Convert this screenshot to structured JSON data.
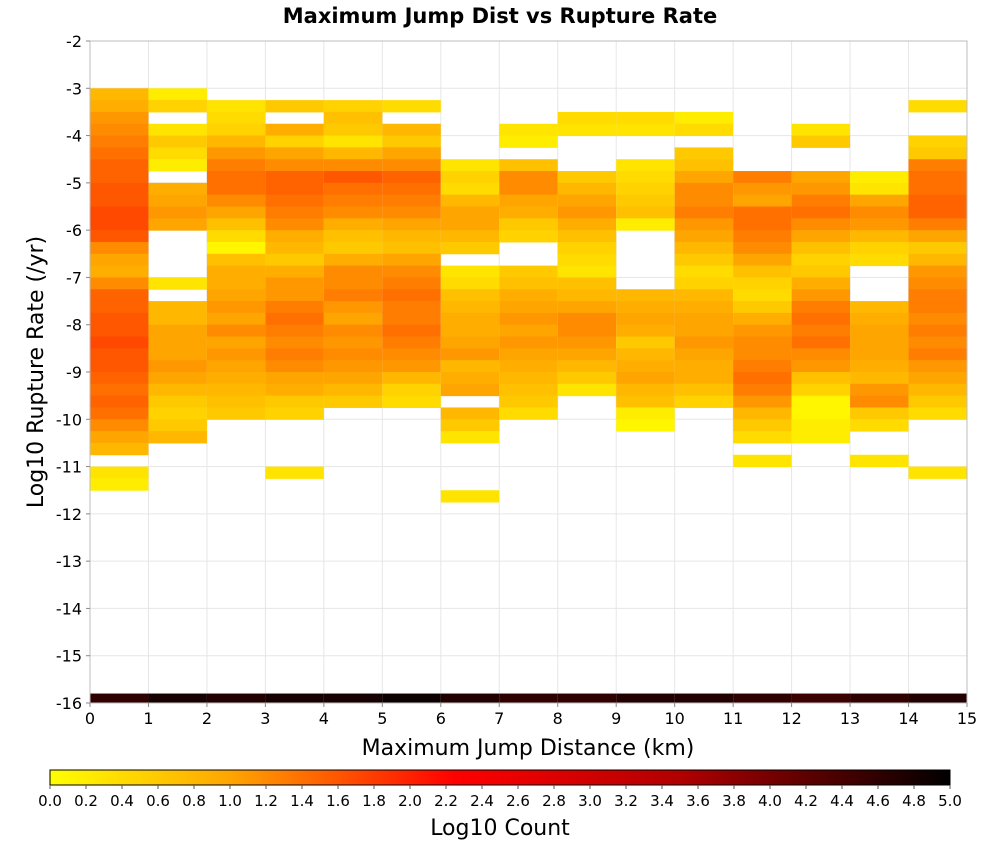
{
  "chart_data": {
    "type": "heatmap",
    "title": "Maximum Jump Dist vs Rupture Rate",
    "xlabel": "Maximum Jump Distance (km)",
    "ylabel": "Log10 Rupture Rate (/yr)",
    "xlim": [
      0,
      15
    ],
    "ylim": [
      -16,
      -2
    ],
    "x_ticks": [
      "0",
      "1",
      "2",
      "3",
      "4",
      "5",
      "6",
      "7",
      "8",
      "9",
      "10",
      "11",
      "12",
      "13",
      "14",
      "15"
    ],
    "y_ticks": [
      "-2",
      "-3",
      "-4",
      "-5",
      "-6",
      "-7",
      "-8",
      "-9",
      "-10",
      "-11",
      "-12",
      "-13",
      "-14",
      "-15",
      "-16"
    ],
    "grid": true,
    "x_bin_width": 1,
    "y_bin_width": 0.25,
    "x_bins": [
      0.5,
      1.5,
      2.5,
      3.5,
      4.5,
      5.5,
      6.5,
      7.5,
      8.5,
      9.5,
      10.5,
      11.5,
      12.5,
      13.5,
      14.5
    ],
    "colorbar": {
      "label": "Log10 Count",
      "min": 0.0,
      "max": 5.0,
      "ticks": [
        "0.0",
        "0.2",
        "0.4",
        "0.6",
        "0.8",
        "1.0",
        "1.2",
        "1.4",
        "1.6",
        "1.8",
        "2.0",
        "2.2",
        "2.4",
        "2.6",
        "2.8",
        "3.0",
        "3.2",
        "3.4",
        "3.6",
        "3.8",
        "4.0",
        "4.2",
        "4.4",
        "4.6",
        "4.8",
        "5.0"
      ],
      "colormap": "yellow-orange-red-black",
      "colors": [
        "#ffff00",
        "#ffa500",
        "#ff0000",
        "#000000"
      ]
    },
    "columns": [
      {
        "x": 0.5,
        "y_top": -3.0,
        "values": [
          0.8,
          0.9,
          1.1,
          1.2,
          1.3,
          1.4,
          1.5,
          1.5,
          1.6,
          1.6,
          1.7,
          1.7,
          1.6,
          1.2,
          1.0,
          0.9,
          1.2,
          1.5,
          1.5,
          1.6,
          1.6,
          1.7,
          1.6,
          1.6,
          1.5,
          1.4,
          1.5,
          1.4,
          1.2,
          1.0,
          0.8,
          null,
          0.3,
          0.2
        ],
        "bottom_row": 4.6
      },
      {
        "x": 1.5,
        "y_top": -3.0,
        "values": [
          0.2,
          0.5,
          null,
          0.3,
          0.6,
          0.4,
          0.2,
          null,
          0.9,
          1.0,
          1.1,
          1.0,
          null,
          null,
          null,
          null,
          0.3,
          null,
          0.8,
          0.8,
          1.0,
          1.0,
          1.0,
          1.1,
          1.0,
          0.8,
          0.6,
          0.5,
          0.6,
          0.8
        ],
        "bottom_row": 4.8
      },
      {
        "x": 2.5,
        "y_top": -3.25,
        "values": [
          0.3,
          0.4,
          0.5,
          0.8,
          1.1,
          1.3,
          1.4,
          1.4,
          1.2,
          1.0,
          0.7,
          0.4,
          0.1,
          0.7,
          0.9,
          0.9,
          1.0,
          1.1,
          1.0,
          1.2,
          1.0,
          1.1,
          1.0,
          0.9,
          0.8,
          0.7,
          0.6
        ],
        "bottom_row": 4.7
      },
      {
        "x": 3.5,
        "y_top": -3.25,
        "values": [
          0.6,
          null,
          0.9,
          0.5,
          1.0,
          1.2,
          1.5,
          1.5,
          1.4,
          1.3,
          1.2,
          0.9,
          0.8,
          0.6,
          0.9,
          1.1,
          1.1,
          1.3,
          1.4,
          1.3,
          1.2,
          1.3,
          1.2,
          1.0,
          0.9,
          0.6,
          0.5,
          null,
          null,
          null,
          null,
          0.3
        ],
        "bottom_row": 4.8
      },
      {
        "x": 4.5,
        "y_top": -3.25,
        "values": [
          0.5,
          0.7,
          0.6,
          0.3,
          0.8,
          1.2,
          1.6,
          1.4,
          1.3,
          1.2,
          0.9,
          0.7,
          0.6,
          0.9,
          1.2,
          1.2,
          1.3,
          1.1,
          1.0,
          1.2,
          1.1,
          1.2,
          1.1,
          1.0,
          0.8,
          0.6
        ],
        "bottom_row": 4.8
      },
      {
        "x": 5.5,
        "y_top": -3.25,
        "values": [
          0.4,
          null,
          0.8,
          0.6,
          1.0,
          1.2,
          1.5,
          1.4,
          1.3,
          1.2,
          1.0,
          0.8,
          0.7,
          1.0,
          1.2,
          1.3,
          1.4,
          1.3,
          1.3,
          1.4,
          1.3,
          1.2,
          1.1,
          0.8,
          0.5,
          0.4
        ],
        "bottom_row": 4.9
      },
      {
        "x": 6.5,
        "y_top": -4.5,
        "values": [
          0.3,
          0.5,
          0.4,
          0.8,
          1.0,
          1.0,
          0.8,
          0.6,
          null,
          0.3,
          0.4,
          0.7,
          0.8,
          0.9,
          0.9,
          1.0,
          1.1,
          0.8,
          0.9,
          1.0,
          null,
          0.8,
          0.6,
          0.3,
          null,
          null,
          null,
          null,
          0.3
        ],
        "bottom_row": 4.7
      },
      {
        "x": 7.5,
        "y_top": -3.75,
        "values": [
          0.3,
          0.2,
          null,
          0.7,
          1.2,
          1.2,
          1.0,
          0.9,
          0.6,
          0.5,
          null,
          null,
          0.6,
          0.7,
          0.9,
          1.0,
          1.1,
          1.0,
          1.1,
          1.0,
          0.9,
          0.8,
          0.7,
          0.6,
          0.4
        ],
        "bottom_row": 4.6
      },
      {
        "x": 8.5,
        "y_top": -3.5,
        "values": [
          0.4,
          0.3,
          null,
          null,
          null,
          0.6,
          0.8,
          1.0,
          1.1,
          0.9,
          0.7,
          0.5,
          0.4,
          0.3,
          0.7,
          0.8,
          1.0,
          1.2,
          1.2,
          1.1,
          1.0,
          0.8,
          0.6,
          0.3
        ],
        "bottom_row": 4.6
      },
      {
        "x": 9.5,
        "y_top": -3.5,
        "values": [
          0.4,
          0.3,
          null,
          null,
          0.3,
          0.4,
          0.5,
          0.6,
          0.7,
          0.2,
          null,
          null,
          null,
          null,
          null,
          0.8,
          0.9,
          1.0,
          0.9,
          0.6,
          0.8,
          0.9,
          1.0,
          0.8,
          0.7,
          0.2,
          0.1
        ],
        "bottom_row": 4.7
      },
      {
        "x": 10.5,
        "y_top": -3.5,
        "values": [
          0.2,
          0.4,
          null,
          0.6,
          0.7,
          1.0,
          1.2,
          1.2,
          1.3,
          1.1,
          1.0,
          0.8,
          0.6,
          0.4,
          0.5,
          0.8,
          0.9,
          1.0,
          1.0,
          1.1,
          1.0,
          0.9,
          0.9,
          0.7,
          0.5
        ],
        "bottom_row": 4.7
      },
      {
        "x": 11.5,
        "y_top": -4.75,
        "values": [
          1.3,
          1.1,
          1.0,
          1.4,
          1.4,
          1.3,
          1.2,
          1.0,
          0.7,
          0.5,
          0.4,
          0.6,
          0.9,
          1.1,
          1.2,
          1.2,
          1.3,
          1.4,
          1.3,
          1.1,
          0.8,
          0.6,
          0.4,
          null,
          0.3
        ],
        "bottom_row": 4.6
      },
      {
        "x": 12.5,
        "y_top": -3.75,
        "values": [
          0.3,
          0.6,
          null,
          null,
          1.0,
          1.1,
          1.3,
          1.4,
          1.2,
          1.0,
          0.7,
          0.5,
          0.6,
          0.9,
          1.1,
          1.3,
          1.4,
          1.3,
          1.4,
          1.2,
          1.1,
          0.7,
          0.5,
          0.1,
          0.1,
          0.2,
          0.2
        ],
        "bottom_row": 4.5
      },
      {
        "x": 13.5,
        "y_top": -4.75,
        "values": [
          0.2,
          0.3,
          1.0,
          1.2,
          1.1,
          0.8,
          0.5,
          0.4,
          null,
          null,
          null,
          0.8,
          0.9,
          1.0,
          1.0,
          1.0,
          0.9,
          0.8,
          1.1,
          1.2,
          0.6,
          0.4,
          null,
          null,
          0.3
        ],
        "bottom_row": 4.6
      },
      {
        "x": 14.5,
        "y_top": -3.25,
        "values": [
          0.4,
          null,
          null,
          0.5,
          0.6,
          1.3,
          1.4,
          1.4,
          1.5,
          1.5,
          1.3,
          1.0,
          0.6,
          0.8,
          1.1,
          1.2,
          1.3,
          1.3,
          1.2,
          1.3,
          1.2,
          1.3,
          1.1,
          1.0,
          0.8,
          0.6,
          0.4,
          null,
          null,
          null,
          null,
          0.3
        ],
        "bottom_row": 4.7
      }
    ]
  }
}
